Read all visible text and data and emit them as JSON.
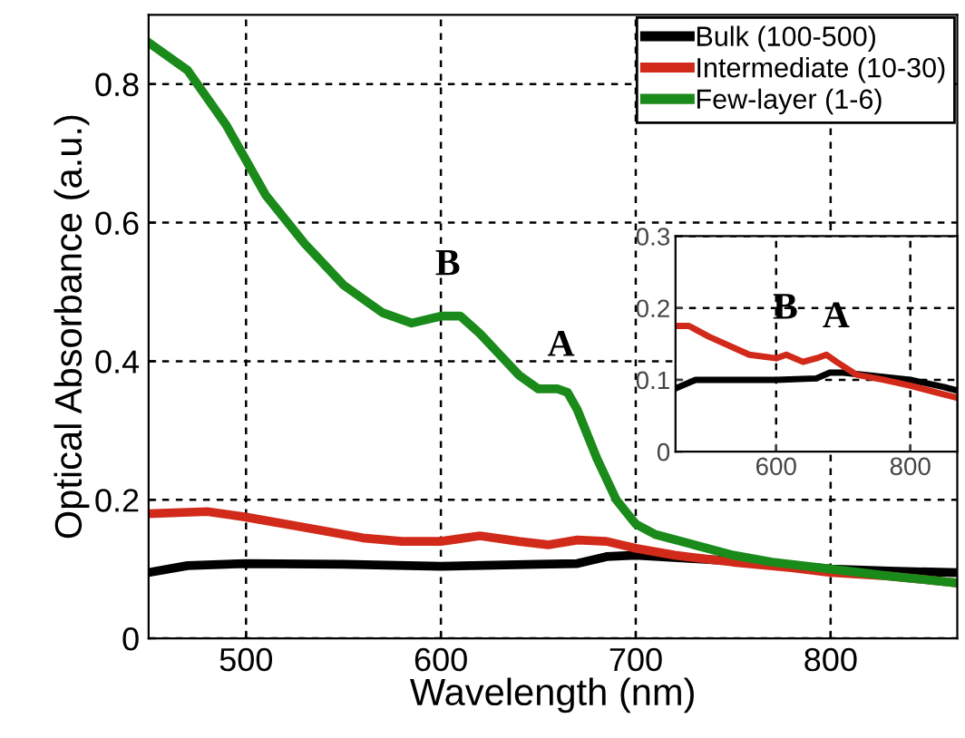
{
  "chart_data": [
    {
      "type": "line",
      "xlabel": "Wavelength (nm)",
      "ylabel": "Optical Absorbance (a.u.)",
      "xlim": [
        450,
        865
      ],
      "ylim": [
        0,
        0.9
      ],
      "xticks": [
        500,
        600,
        700,
        800
      ],
      "yticks": [
        0,
        0.2,
        0.4,
        0.6,
        0.8
      ],
      "grid": true,
      "line_style": "solid",
      "legend": "top right",
      "marker": "none",
      "series": [
        {
          "name": "Bulk (100-500)",
          "color": "#000000",
          "x": [
            450,
            470,
            500,
            550,
            600,
            650,
            670,
            685,
            700,
            730,
            760,
            800,
            830,
            865
          ],
          "values": [
            0.095,
            0.105,
            0.108,
            0.107,
            0.104,
            0.107,
            0.108,
            0.118,
            0.12,
            0.115,
            0.11,
            0.1,
            0.097,
            0.095
          ]
        },
        {
          "name": "Intermediate (10-30)",
          "color": "#d22a1a",
          "x": [
            450,
            480,
            500,
            530,
            560,
            580,
            600,
            620,
            640,
            655,
            670,
            685,
            700,
            720,
            750,
            780,
            800,
            830,
            865
          ],
          "values": [
            0.18,
            0.183,
            0.175,
            0.16,
            0.145,
            0.14,
            0.14,
            0.148,
            0.14,
            0.135,
            0.142,
            0.14,
            0.13,
            0.12,
            0.11,
            0.102,
            0.095,
            0.09,
            0.08
          ]
        },
        {
          "name": "Few-layer (1-6)",
          "color": "#1a8a1a",
          "x": [
            450,
            470,
            490,
            510,
            530,
            550,
            570,
            585,
            600,
            610,
            620,
            630,
            640,
            650,
            660,
            665,
            670,
            680,
            690,
            700,
            710,
            730,
            750,
            770,
            800,
            830,
            865
          ],
          "values": [
            0.86,
            0.82,
            0.74,
            0.64,
            0.57,
            0.51,
            0.47,
            0.455,
            0.465,
            0.465,
            0.44,
            0.41,
            0.38,
            0.36,
            0.36,
            0.355,
            0.33,
            0.26,
            0.2,
            0.165,
            0.15,
            0.135,
            0.12,
            0.11,
            0.1,
            0.09,
            0.08
          ]
        }
      ],
      "annotations": [
        "B",
        "A"
      ]
    },
    {
      "type": "line",
      "xlim": [
        450,
        870
      ],
      "ylim": [
        0,
        0.3
      ],
      "xticks": [
        600,
        800
      ],
      "yticks": [
        0,
        0.1,
        0.2,
        0.3
      ],
      "grid": true,
      "line_style": "solid",
      "marker": "none",
      "series": [
        {
          "color": "#000000",
          "x": [
            450,
            480,
            520,
            600,
            660,
            680,
            700,
            750,
            800,
            850,
            870
          ],
          "values": [
            0.088,
            0.1,
            0.1,
            0.1,
            0.102,
            0.11,
            0.11,
            0.105,
            0.1,
            0.09,
            0.085
          ]
        },
        {
          "color": "#d22a1a",
          "x": [
            450,
            470,
            500,
            560,
            600,
            615,
            640,
            660,
            675,
            690,
            720,
            760,
            800,
            840,
            870
          ],
          "values": [
            0.175,
            0.175,
            0.16,
            0.135,
            0.13,
            0.135,
            0.125,
            0.13,
            0.135,
            0.125,
            0.107,
            0.1,
            0.092,
            0.082,
            0.075
          ]
        }
      ],
      "annotations": [
        "B",
        "A"
      ]
    }
  ]
}
